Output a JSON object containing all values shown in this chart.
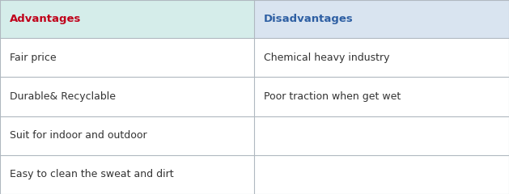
{
  "header_left": "Advantages",
  "header_right": "Disadvantages",
  "header_left_color": "#c0001a",
  "header_right_color": "#2e5fa3",
  "header_bg_left": "#d5edea",
  "header_bg_right": "#d9e4f0",
  "cell_bg": "#ffffff",
  "grid_color": "#b0b8c0",
  "rows": [
    [
      "Fair price",
      "Chemical heavy industry"
    ],
    [
      "Durable& Recyclable",
      "Poor traction when get wet"
    ],
    [
      "Suit for indoor and outdoor",
      ""
    ],
    [
      "Easy to clean the sweat and dirt",
      ""
    ]
  ],
  "cell_text_color": "#333333",
  "font_size_header": 9.5,
  "font_size_cell": 9.0,
  "fig_width": 6.29,
  "fig_height": 2.4,
  "dpi": 100
}
